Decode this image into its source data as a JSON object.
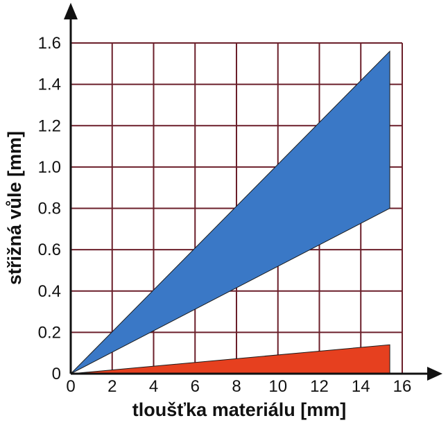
{
  "chart_data": {
    "type": "area",
    "xlabel": "tloušťka materiálu [mm]",
    "ylabel": "střižná vůle [mm]",
    "xlim": [
      0,
      16
    ],
    "ylim": [
      0,
      1.6
    ],
    "x_ticks": [
      "0",
      "2",
      "4",
      "6",
      "8",
      "10",
      "12",
      "14",
      "16"
    ],
    "y_ticks": [
      "0",
      "0.2",
      "0.4",
      "0.6",
      "0.8",
      "1.0",
      "1.2",
      "1.4",
      "1.6"
    ],
    "grid": true,
    "series": [
      {
        "color": "#3a78c6",
        "x": [
          0,
          15.4
        ],
        "upper": [
          0,
          1.56
        ],
        "lower": [
          0,
          0.8
        ]
      },
      {
        "color": "#e6401f",
        "x": [
          0,
          15.4
        ],
        "upper": [
          0,
          0.14
        ],
        "lower": [
          0,
          0.0
        ]
      }
    ]
  }
}
